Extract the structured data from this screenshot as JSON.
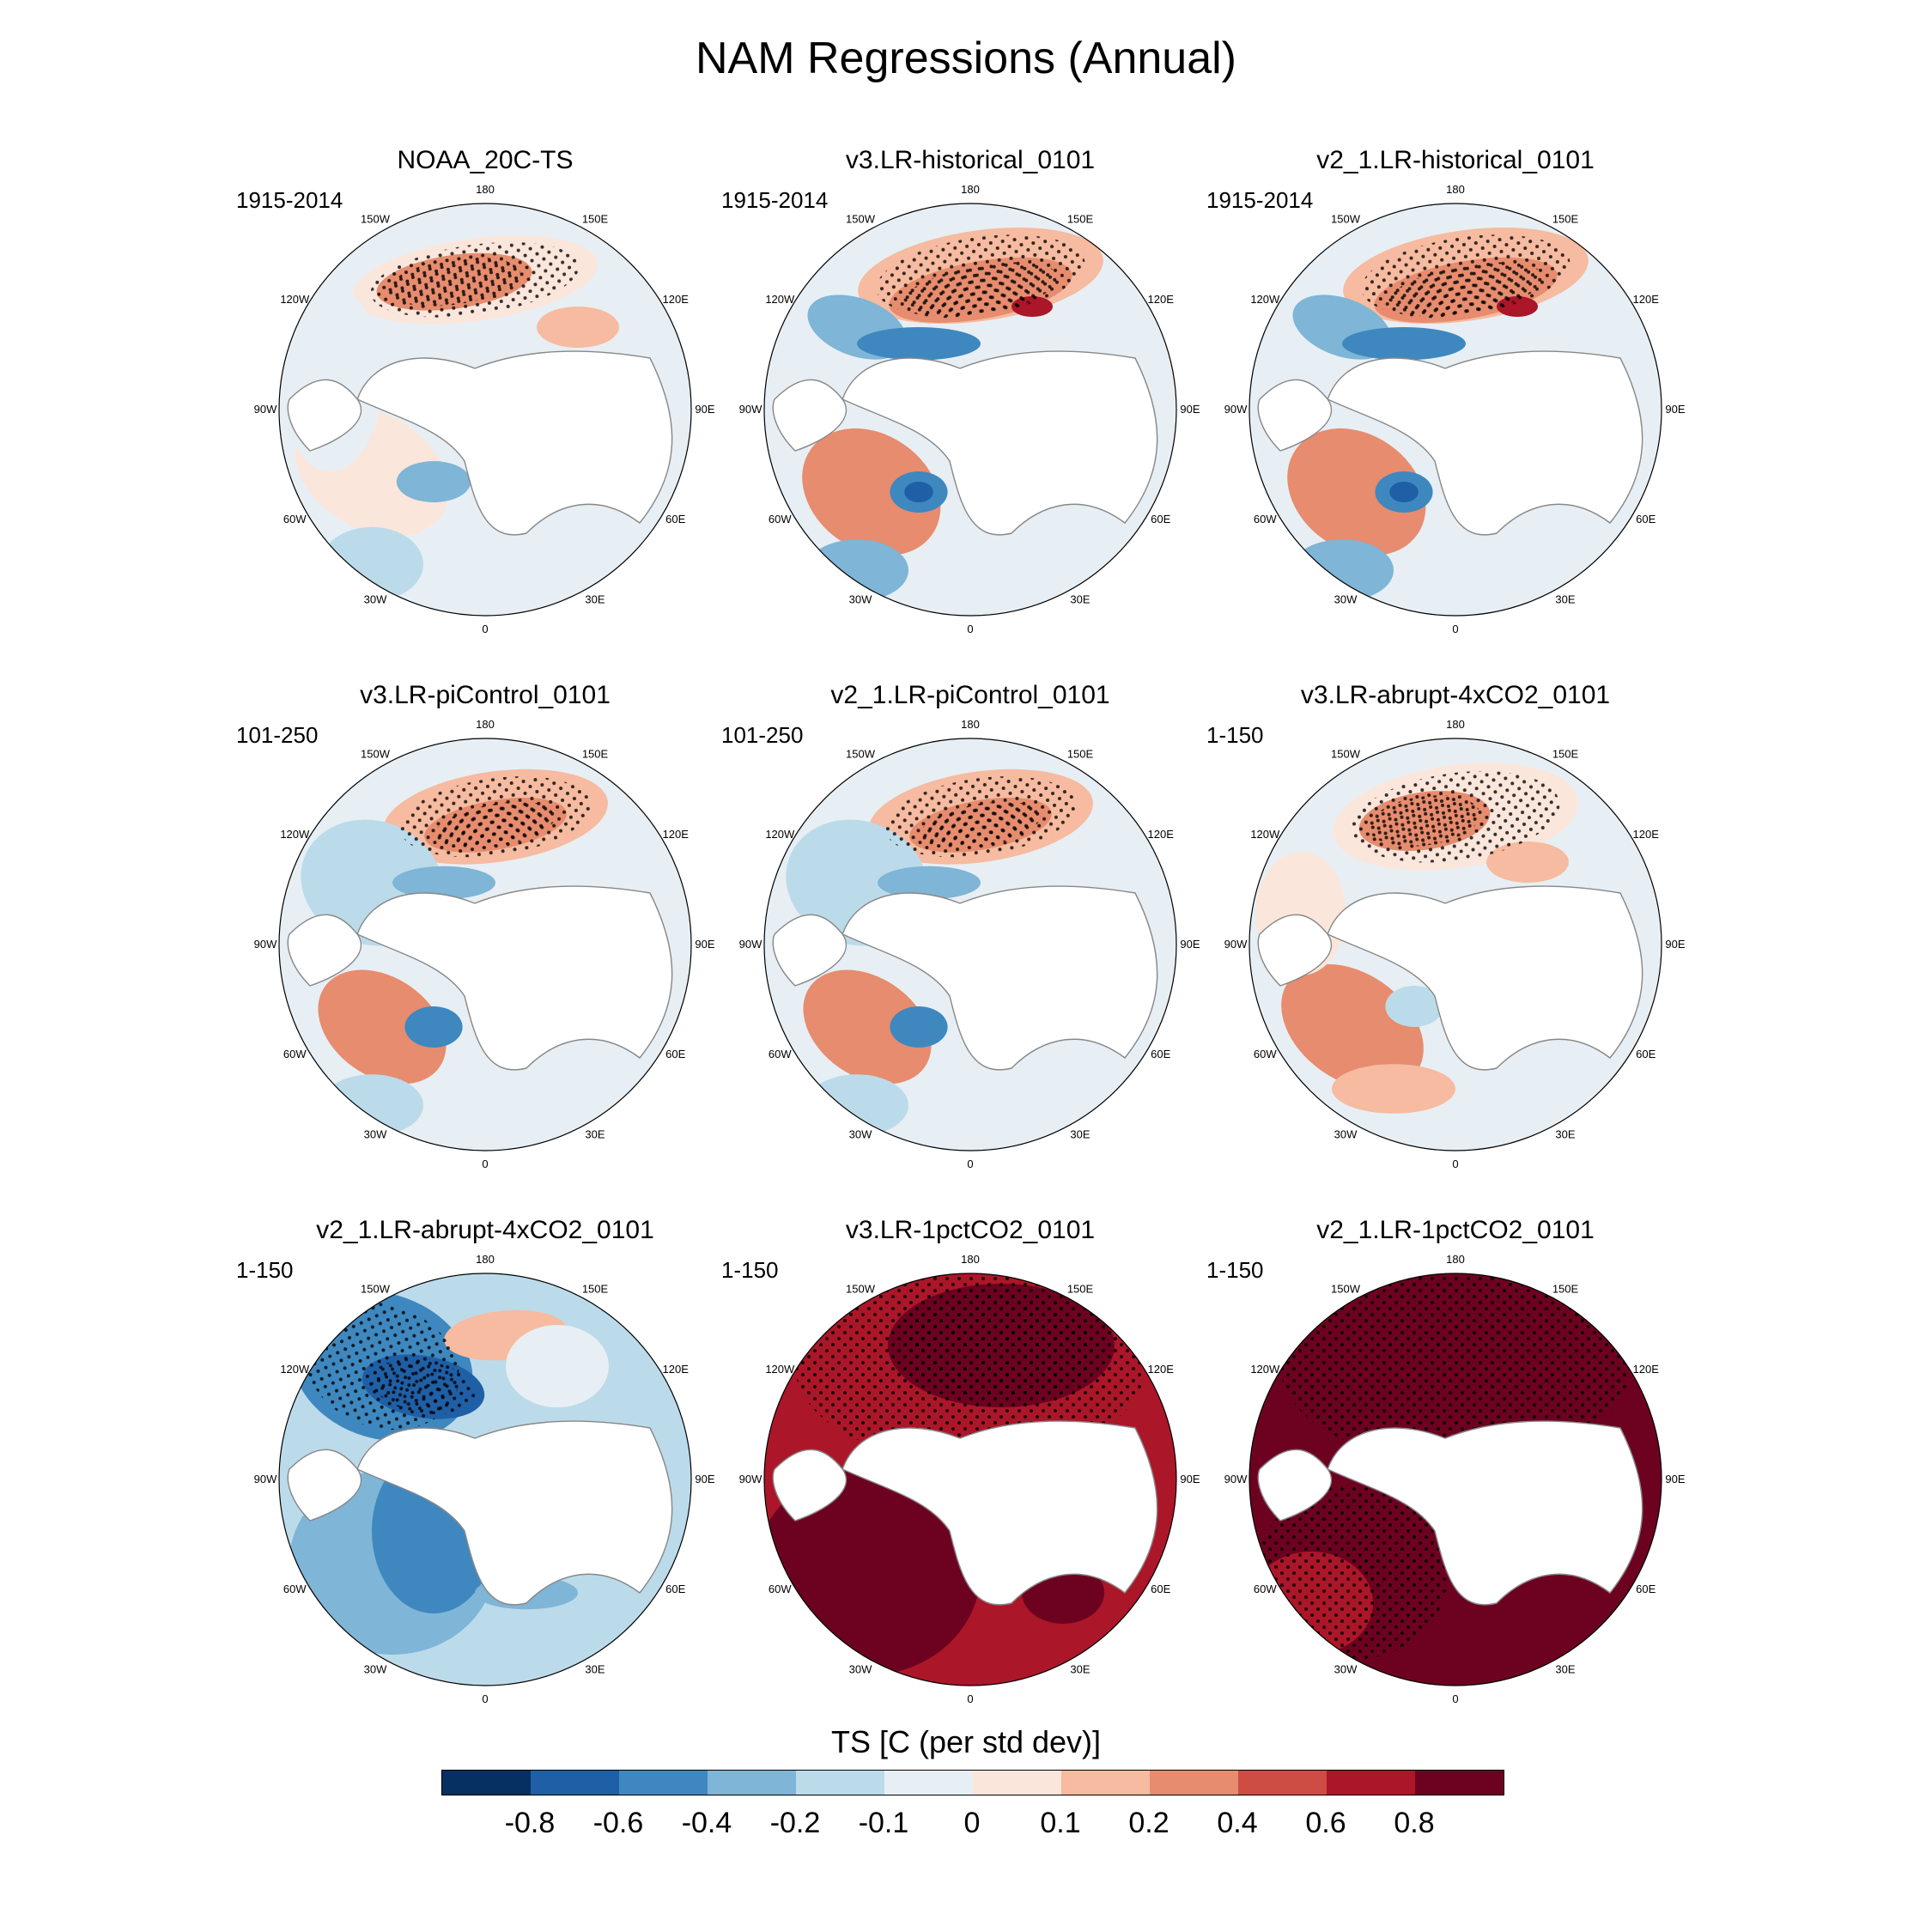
{
  "title": "NAM Regressions (Annual)",
  "longitude_labels": [
    "180",
    "150E",
    "120E",
    "90E",
    "60E",
    "30E",
    "0",
    "30W",
    "60W",
    "90W",
    "120W",
    "150W"
  ],
  "colorbar": {
    "title": "TS [C (per std dev)]",
    "colors": [
      "#053061",
      "#1f5fa6",
      "#3e88bf",
      "#7fb5d6",
      "#bcdbea",
      "#e7eff4",
      "#fbe6dc",
      "#f6bba0",
      "#e78c6e",
      "#cd4c44",
      "#ac1629",
      "#6d0220"
    ],
    "labels": [
      "-0.8",
      "-0.6",
      "-0.4",
      "-0.2",
      "-0.1",
      "0",
      "0.1",
      "0.2",
      "0.4",
      "0.6",
      "0.8"
    ]
  },
  "panels": [
    {
      "title": "NOAA_20C-TS",
      "period": "1915-2014",
      "pattern": "obs"
    },
    {
      "title": "v3.LR-historical_0101",
      "period": "1915-2014",
      "pattern": "hist"
    },
    {
      "title": "v2_1.LR-historical_0101",
      "period": "1915-2014",
      "pattern": "hist"
    },
    {
      "title": "v3.LR-piControl_0101",
      "period": "101-250",
      "pattern": "pi"
    },
    {
      "title": "v2_1.LR-piControl_0101",
      "period": "101-250",
      "pattern": "pi"
    },
    {
      "title": "v3.LR-abrupt-4xCO2_0101",
      "period": "1-150",
      "pattern": "abrupt3"
    },
    {
      "title": "v2_1.LR-abrupt-4xCO2_0101",
      "period": "1-150",
      "pattern": "cold"
    },
    {
      "title": "v3.LR-1pctCO2_0101",
      "period": "1-150",
      "pattern": "hot"
    },
    {
      "title": "v2_1.LR-1pctCO2_0101",
      "period": "1-150",
      "pattern": "hot2"
    }
  ]
}
